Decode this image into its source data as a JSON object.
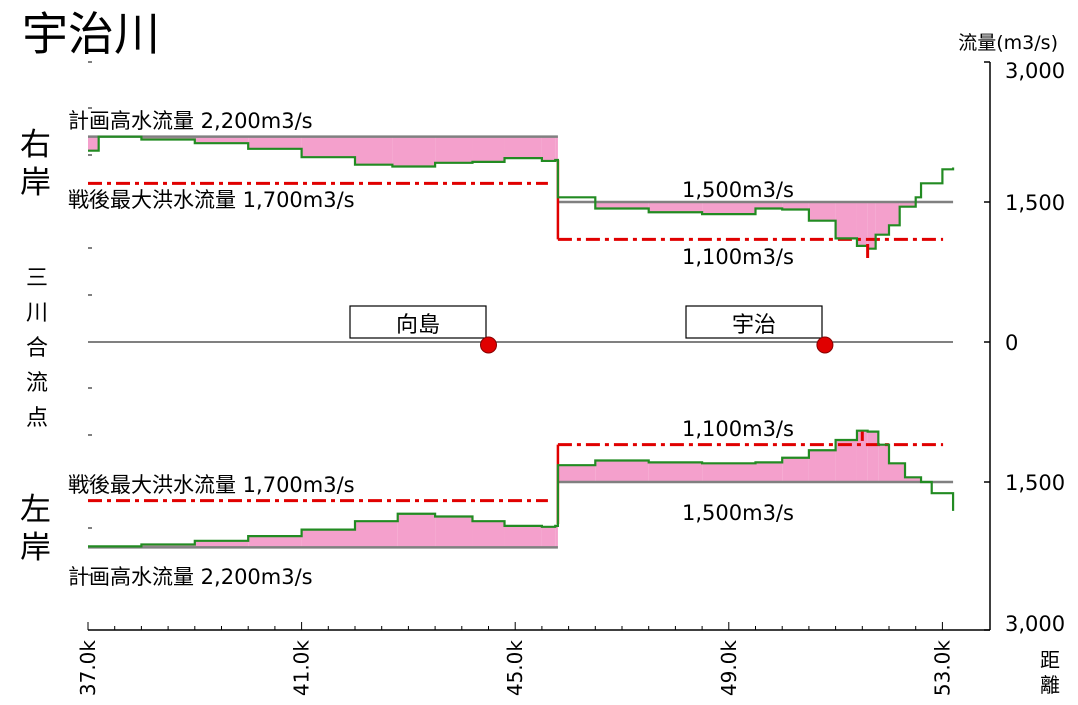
{
  "title": "宇治川",
  "y_axis_unit": "流量(m3/s)",
  "x_axis_label": "距離",
  "bank_labels": {
    "right_bank": "右岸",
    "left_bank": "左岸",
    "confluence": "三川合流点"
  },
  "station_labels": [
    "向島",
    "宇治"
  ],
  "annotations": {
    "right_plan": "計画高水流量 2,200m3/s",
    "right_max": "戦後最大洪水流量 1,700m3/s",
    "right_plan_upper": "1,500m3/s",
    "right_max_upper": "1,100m3/s",
    "left_max_upper": "1,100m3/s",
    "left_max": "戦後最大洪水流量 1,700m3/s",
    "left_plan_upper": "1,500m3/s",
    "left_plan": "計画高水流量 2,200m3/s"
  },
  "chart_data": {
    "type": "line",
    "title": "宇治川",
    "xlabel": "距離",
    "ylabel": "流量(m3/s)",
    "x_ticks": [
      "37.0k",
      "41.0k",
      "45.0k",
      "49.0k",
      "53.0k"
    ],
    "xlim": [
      37.0,
      53.0
    ],
    "right_y_ticks": [
      "3,000",
      "1,500",
      "0",
      "1,500",
      "3,000"
    ],
    "ylim": [
      -3000,
      3000
    ],
    "colors": {
      "capacity": "#228b22",
      "deficit_fill": "#f4a0cc",
      "plan": "#808080",
      "postwar_max": "#e00000",
      "station": "#e00000",
      "panel": "#eef6f6"
    },
    "stations": [
      {
        "name": "向島",
        "x": 44.5,
        "y": 0
      },
      {
        "name": "宇治",
        "x": 50.8,
        "y": 0
      }
    ],
    "right_bank": {
      "plan_flow": [
        {
          "x_from": 37.0,
          "x_to": 45.8,
          "flow": 2200
        },
        {
          "x_from": 45.8,
          "x_to": 53.2,
          "flow": 1500
        }
      ],
      "postwar_max_flow": [
        {
          "x_from": 37.0,
          "x_to": 45.8,
          "flow": 1700
        },
        {
          "x_from": 45.8,
          "x_to": 53.2,
          "flow": 1100
        }
      ],
      "capacity": {
        "x": [
          37.0,
          37.2,
          38.0,
          39.0,
          40.0,
          41.0,
          42.0,
          42.7,
          43.5,
          44.2,
          44.8,
          45.5,
          45.75,
          45.8,
          46.5,
          47.5,
          48.5,
          49.5,
          50.0,
          50.5,
          51.0,
          51.4,
          51.6,
          51.75,
          52.0,
          52.2,
          52.5,
          52.6,
          53.0,
          53.0,
          53.2
        ],
        "y": [
          2050,
          2200,
          2170,
          2130,
          2070,
          1980,
          1900,
          1880,
          1920,
          1930,
          1970,
          1940,
          1950,
          1550,
          1430,
          1390,
          1370,
          1430,
          1420,
          1300,
          1110,
          1030,
          1000,
          1150,
          1250,
          1450,
          1550,
          1700,
          1750,
          1850,
          1870
        ]
      }
    },
    "left_bank": {
      "plan_flow": [
        {
          "x_from": 37.0,
          "x_to": 45.8,
          "flow": 2200
        },
        {
          "x_from": 45.8,
          "x_to": 53.2,
          "flow": 1500
        }
      ],
      "postwar_max_flow": [
        {
          "x_from": 37.0,
          "x_to": 45.8,
          "flow": 1700
        },
        {
          "x_from": 45.8,
          "x_to": 53.2,
          "flow": 1100
        }
      ],
      "capacity": {
        "x": [
          37.0,
          38.0,
          39.0,
          40.0,
          41.0,
          42.0,
          42.8,
          43.5,
          44.2,
          44.8,
          45.5,
          45.75,
          45.8,
          46.5,
          47.5,
          48.5,
          49.5,
          50.0,
          50.5,
          51.0,
          51.4,
          51.6,
          51.8,
          52.0,
          52.3,
          52.6,
          52.8,
          53.2
        ],
        "y": [
          2190,
          2170,
          2130,
          2080,
          2010,
          1920,
          1840,
          1870,
          1920,
          1970,
          1980,
          1970,
          1320,
          1270,
          1290,
          1300,
          1290,
          1240,
          1160,
          1050,
          950,
          960,
          1100,
          1300,
          1450,
          1500,
          1620,
          1810
        ]
      }
    }
  }
}
